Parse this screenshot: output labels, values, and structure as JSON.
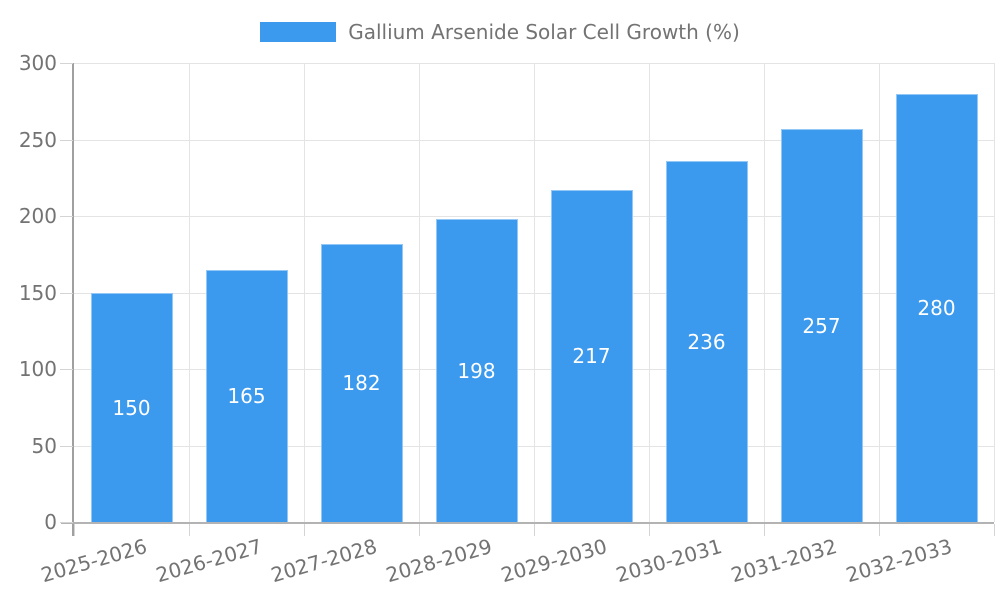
{
  "chart_data": {
    "type": "bar",
    "title": "Gallium Arsenide Solar Cell Growth (%)",
    "categories": [
      "2025-2026",
      "2026-2027",
      "2027-2028",
      "2028-2029",
      "2029-2030",
      "2030-2031",
      "2031-2032",
      "2032-2033"
    ],
    "values": [
      150,
      165,
      182,
      198,
      217,
      236,
      257,
      280
    ],
    "xlabel": "",
    "ylabel": "",
    "ylim": [
      0,
      300
    ],
    "yticks": [
      0,
      50,
      100,
      150,
      200,
      250,
      300
    ],
    "legend_position": "top",
    "grid": true,
    "bar_color": "#3b99ee",
    "value_label_color": "#ffffff",
    "axis_text_color": "#737373",
    "gridline_color": "#e4e4e4"
  }
}
